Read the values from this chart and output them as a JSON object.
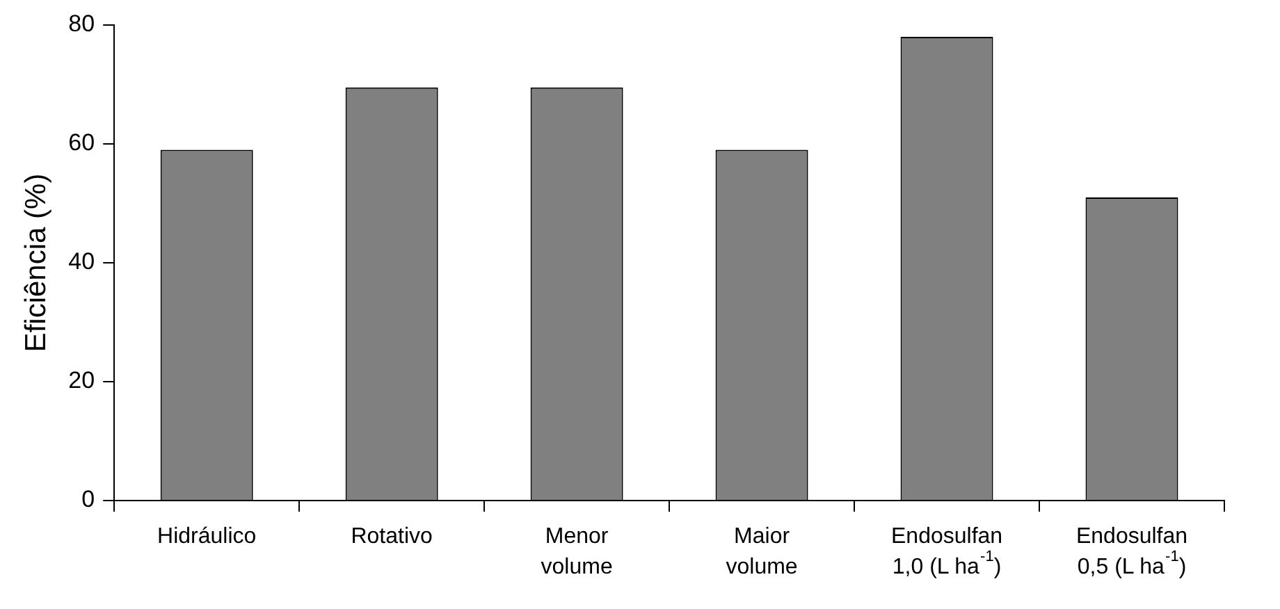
{
  "chart_data": {
    "type": "bar",
    "ylabel": "Eficiência (%)",
    "categories": [
      "Hidráulico",
      "Rotativo",
      "Menor volume",
      "Maior volume",
      "Endosulfan 1,0 (L ha$^{-1}$)",
      "Endosulfan 0,5 (L ha$^{-1}$)"
    ],
    "values": [
      59,
      69.5,
      69.5,
      59,
      78,
      51
    ],
    "color": "#808080",
    "ylim": [
      0,
      80
    ],
    "yticks": [
      0,
      20,
      40,
      60,
      80
    ],
    "grid": false,
    "legend": false
  }
}
